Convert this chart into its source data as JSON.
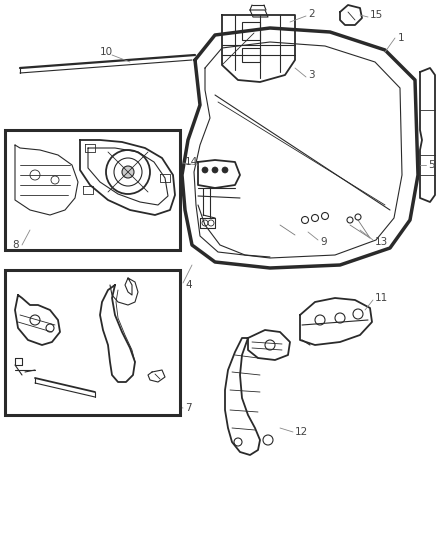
{
  "bg_color": "#ffffff",
  "line_color": "#2a2a2a",
  "label_color": "#555555",
  "fig_width": 4.38,
  "fig_height": 5.33,
  "dpi": 100
}
